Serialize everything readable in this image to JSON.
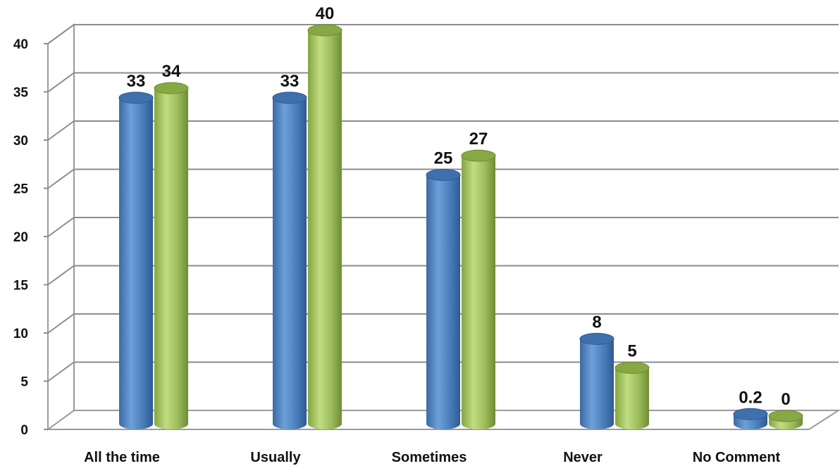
{
  "chart_data": {
    "type": "bar",
    "categories": [
      "All the time",
      "Usually",
      "Sometimes",
      "Never",
      "No Comment"
    ],
    "series": [
      {
        "values": [
          33,
          33,
          25,
          8,
          0.2
        ],
        "color": "#4a7ebb"
      },
      {
        "values": [
          34,
          40,
          27,
          5,
          0
        ],
        "color": "#9bbb59"
      }
    ],
    "data_labels": [
      [
        "33",
        "33",
        "25",
        "8",
        "0.2"
      ],
      [
        "34",
        "40",
        "27",
        "5",
        "0"
      ]
    ],
    "yticks": [
      "0",
      "5",
      "10",
      "15",
      "20",
      "25",
      "30",
      "35",
      "40"
    ],
    "ylim": [
      0,
      40
    ],
    "grid": true,
    "style": "3d-cylinder"
  }
}
